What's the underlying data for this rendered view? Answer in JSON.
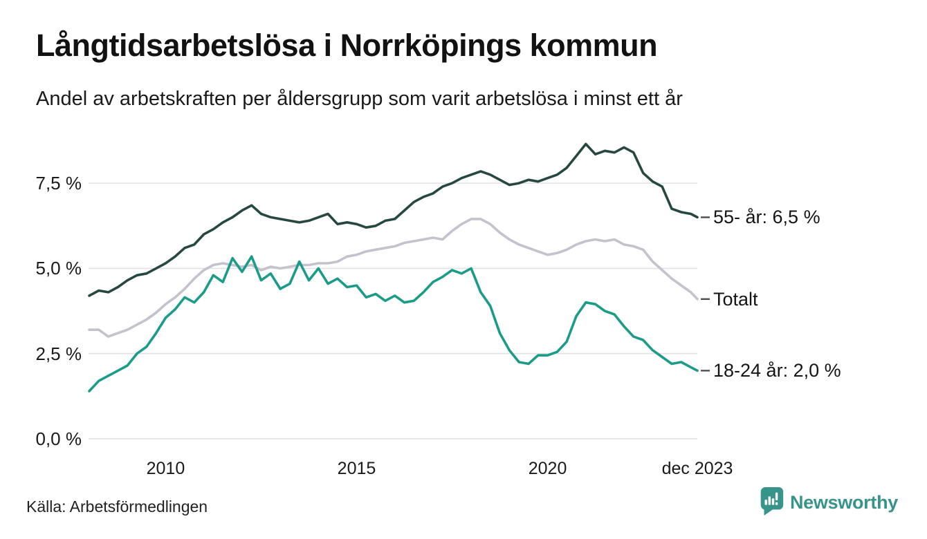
{
  "header": {
    "title": "Långtidsarbetslösa i Norrköpings kommun",
    "subtitle": "Andel av arbetskraften per åldersgrupp som varit arbetslösa i minst ett år"
  },
  "source": {
    "label": "Källa: Arbetsförmedlingen"
  },
  "branding": {
    "name": "Newsworthy",
    "color": "#37948b",
    "icon": "newsworthy-speech-bubble-bar-chart-icon"
  },
  "chart_data": {
    "type": "line",
    "title": "Långtidsarbetslösa i Norrköpings kommun",
    "subtitle": "Andel av arbetskraften per åldersgrupp som varit arbetslösa i minst ett år",
    "xlabel": "",
    "ylabel": "",
    "grid": true,
    "gridline_color": "#e1e1e4",
    "x_unit": "year (quarterly samples)",
    "x_range": [
      2008.0,
      2023.92
    ],
    "x_step": 0.25,
    "ylim": [
      0,
      9
    ],
    "y_ticks": [
      {
        "label": "0,0 %",
        "value": 0.0
      },
      {
        "label": "2,5 %",
        "value": 2.5
      },
      {
        "label": "5,0 %",
        "value": 5.0
      },
      {
        "label": "7,5 %",
        "value": 7.5
      }
    ],
    "x_ticks": [
      {
        "label": "2010",
        "value": 2010
      },
      {
        "label": "2015",
        "value": 2015
      },
      {
        "label": "2020",
        "value": 2020
      },
      {
        "label": "dec 2023",
        "value": 2023.92
      }
    ],
    "legend_position": "right-end-labels",
    "series": [
      {
        "id": "55plus",
        "name": "55- år",
        "end_label": "55- år: 6,5 %",
        "end_value": 6.5,
        "color": "#274840",
        "z": 2,
        "values": [
          4.2,
          4.35,
          4.3,
          4.45,
          4.65,
          4.8,
          4.85,
          5.0,
          5.15,
          5.35,
          5.6,
          5.7,
          6.0,
          6.15,
          6.35,
          6.5,
          6.7,
          6.85,
          6.6,
          6.5,
          6.45,
          6.4,
          6.35,
          6.4,
          6.5,
          6.6,
          6.3,
          6.35,
          6.3,
          6.2,
          6.25,
          6.4,
          6.45,
          6.7,
          6.95,
          7.1,
          7.2,
          7.4,
          7.5,
          7.65,
          7.75,
          7.85,
          7.75,
          7.6,
          7.45,
          7.5,
          7.6,
          7.55,
          7.65,
          7.75,
          7.95,
          8.3,
          8.65,
          8.35,
          8.45,
          8.4,
          8.55,
          8.4,
          7.8,
          7.55,
          7.4,
          6.75,
          6.65,
          6.6,
          6.5
        ]
      },
      {
        "id": "totalt",
        "name": "Totalt",
        "end_label": "Totalt",
        "end_value": 4.1,
        "color": "#c3c2cd",
        "z": 0,
        "values": [
          3.2,
          3.2,
          3.0,
          3.1,
          3.2,
          3.35,
          3.5,
          3.7,
          3.95,
          4.15,
          4.4,
          4.7,
          4.95,
          5.1,
          5.15,
          5.1,
          5.05,
          5.1,
          4.95,
          5.05,
          5.0,
          5.05,
          5.1,
          5.1,
          5.15,
          5.15,
          5.2,
          5.35,
          5.4,
          5.5,
          5.55,
          5.6,
          5.65,
          5.75,
          5.8,
          5.85,
          5.9,
          5.85,
          6.1,
          6.3,
          6.45,
          6.45,
          6.3,
          6.05,
          5.85,
          5.7,
          5.6,
          5.5,
          5.4,
          5.45,
          5.55,
          5.7,
          5.8,
          5.85,
          5.8,
          5.85,
          5.7,
          5.65,
          5.55,
          5.2,
          4.95,
          4.7,
          4.5,
          4.3,
          4.1
        ]
      },
      {
        "id": "18-24",
        "name": "18-24 år",
        "end_label": "18-24 år: 2,0 %",
        "end_value": 2.0,
        "color": "#1a9c88",
        "z": 1,
        "values": [
          1.4,
          1.7,
          1.85,
          2.0,
          2.15,
          2.5,
          2.7,
          3.1,
          3.55,
          3.8,
          4.15,
          4.0,
          4.3,
          4.8,
          4.6,
          5.3,
          4.9,
          5.35,
          4.65,
          4.85,
          4.4,
          4.55,
          5.2,
          4.65,
          5.0,
          4.55,
          4.7,
          4.45,
          4.5,
          4.15,
          4.25,
          4.05,
          4.2,
          4.0,
          4.05,
          4.3,
          4.6,
          4.75,
          4.95,
          4.85,
          5.0,
          4.3,
          3.9,
          3.1,
          2.6,
          2.25,
          2.2,
          2.45,
          2.45,
          2.55,
          2.85,
          3.6,
          4.0,
          3.95,
          3.75,
          3.65,
          3.3,
          3.0,
          2.9,
          2.6,
          2.4,
          2.2,
          2.25,
          2.1,
          2.0
        ]
      }
    ]
  }
}
